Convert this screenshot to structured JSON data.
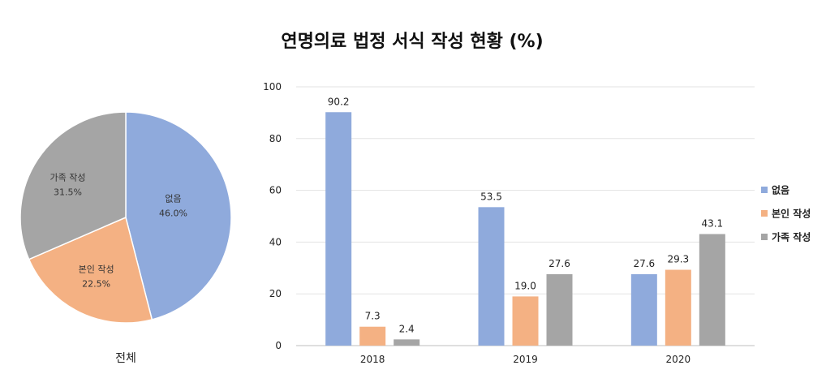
{
  "chart_data": [
    {
      "type": "pie",
      "caption": "전체",
      "slices": [
        {
          "label": "없음",
          "value": 46.0,
          "value_text": "46.0%",
          "color": "#8FAADC"
        },
        {
          "label": "본인 작성",
          "value": 22.5,
          "value_text": "22.5%",
          "color": "#F4B183"
        },
        {
          "label": "가족 작성",
          "value": 31.5,
          "value_text": "31.5%",
          "color": "#A5A5A5"
        }
      ]
    },
    {
      "type": "bar",
      "title": "연명의료 법정 서식 작성 현황 (%)",
      "categories": [
        "2018",
        "2019",
        "2020"
      ],
      "series": [
        {
          "name": "없음",
          "color": "#8FAADC",
          "values": [
            90.2,
            53.5,
            27.6
          ],
          "labels": [
            "90.2",
            "53.5",
            "27.6"
          ]
        },
        {
          "name": "본인 작성",
          "color": "#F4B183",
          "values": [
            7.3,
            19.0,
            29.3
          ],
          "labels": [
            "7.3",
            "19.0",
            "29.3"
          ]
        },
        {
          "name": "가족 작성",
          "color": "#A5A5A5",
          "values": [
            2.4,
            27.6,
            43.1
          ],
          "labels": [
            "2.4",
            "27.6",
            "43.1"
          ]
        }
      ],
      "ylim": [
        0,
        100
      ],
      "yticks": [
        "0",
        "20",
        "40",
        "60",
        "80",
        "100"
      ],
      "grid": true,
      "legend_position": "right"
    }
  ]
}
